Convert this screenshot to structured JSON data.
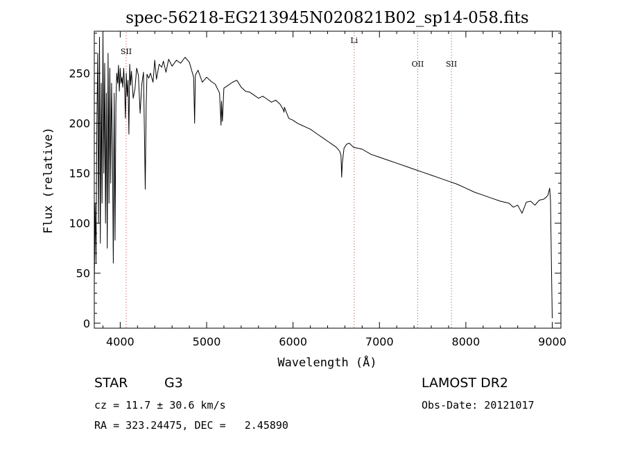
{
  "info": {
    "object_class": "STAR",
    "subclass": "G3",
    "survey": "LAMOST DR2",
    "redshift_line": "cz = 11.7 ± 30.6 km/s",
    "obs_date_line": "Obs-Date: 20121017",
    "coords_line": "RA = 323.24475, DEC =   2.45890"
  },
  "chart_data": {
    "type": "line",
    "title": "spec-56218-EG213945N020821B02_sp14-058.fits",
    "xlabel": "Wavelength (Å)",
    "ylabel": "Flux (relative)",
    "xlim": [
      3700,
      9100
    ],
    "ylim": [
      -5,
      292
    ],
    "xticks": [
      4000,
      5000,
      6000,
      7000,
      8000,
      9000
    ],
    "yticks": [
      0,
      50,
      100,
      150,
      200,
      250
    ],
    "grid": false,
    "line_color": "#000000",
    "marker_color": "#cc3333",
    "spectral_lines": [
      {
        "label": "SII",
        "wavelength": 4069
      },
      {
        "label": "Li",
        "wavelength": 6708
      },
      {
        "label": "OII",
        "wavelength": 7443
      },
      {
        "label": "SII",
        "wavelength": 7833
      }
    ],
    "series": [
      {
        "x": [
          3700,
          3710,
          3720,
          3730,
          3740,
          3750,
          3760,
          3770,
          3780,
          3790,
          3800,
          3810,
          3820,
          3830,
          3840,
          3850,
          3860,
          3870,
          3880,
          3890,
          3900,
          3910,
          3920,
          3930,
          3940,
          3950,
          3960,
          3970,
          3980,
          3990,
          4000,
          4010,
          4020,
          4030,
          4040,
          4050,
          4060,
          4070,
          4080,
          4090,
          4100,
          4110,
          4120,
          4130,
          4150,
          4170,
          4190,
          4210,
          4230,
          4250,
          4270,
          4290,
          4300,
          4310,
          4330,
          4350,
          4380,
          4400,
          4420,
          4450,
          4480,
          4500,
          4530,
          4560,
          4600,
          4650,
          4700,
          4750,
          4800,
          4830,
          4850,
          4861,
          4870,
          4900,
          4950,
          5000,
          5050,
          5100,
          5150,
          5167,
          5172,
          5183,
          5200,
          5250,
          5300,
          5350,
          5400,
          5450,
          5500,
          5550,
          5600,
          5650,
          5700,
          5750,
          5800,
          5850,
          5890,
          5896,
          5900,
          5950,
          6000,
          6050,
          6100,
          6150,
          6200,
          6250,
          6300,
          6350,
          6400,
          6450,
          6500,
          6540,
          6555,
          6563,
          6570,
          6590,
          6620,
          6650,
          6700,
          6750,
          6800,
          6900,
          7000,
          7100,
          7200,
          7300,
          7400,
          7500,
          7600,
          7700,
          7800,
          7900,
          8000,
          8100,
          8200,
          8300,
          8400,
          8500,
          8550,
          8600,
          8650,
          8700,
          8750,
          8800,
          8850,
          8900,
          8930,
          8950,
          8970,
          8980,
          8990,
          9000
        ],
        "y": [
          40,
          120,
          60,
          200,
          270,
          100,
          286,
          80,
          240,
          120,
          290,
          150,
          260,
          100,
          230,
          75,
          270,
          120,
          255,
          140,
          240,
          180,
          60,
          230,
          83,
          220,
          250,
          240,
          258,
          232,
          255,
          240,
          246,
          236,
          255,
          239,
          205,
          250,
          227,
          243,
          189,
          259,
          238,
          252,
          225,
          234,
          255,
          248,
          210,
          239,
          251,
          134,
          217,
          249,
          245,
          250,
          241,
          263,
          244,
          259,
          256,
          262,
          251,
          264,
          257,
          263,
          260,
          266,
          261,
          252,
          246,
          200,
          248,
          253,
          241,
          246,
          242,
          239,
          230,
          198,
          222,
          202,
          235,
          238,
          241,
          243,
          236,
          232,
          231,
          228,
          225,
          227,
          224,
          221,
          223,
          219,
          213,
          211,
          216,
          205,
          203,
          200,
          198,
          196,
          194,
          191,
          188,
          185,
          182,
          179,
          176,
          172,
          168,
          146,
          160,
          175,
          179,
          180,
          176,
          175,
          174,
          169,
          166,
          163,
          160,
          157,
          154,
          151,
          148,
          145,
          142,
          139,
          135,
          131,
          128,
          125,
          122,
          120,
          116,
          118,
          110,
          121,
          122,
          118,
          123,
          124,
          126,
          128,
          135,
          122,
          60,
          5
        ]
      }
    ]
  }
}
